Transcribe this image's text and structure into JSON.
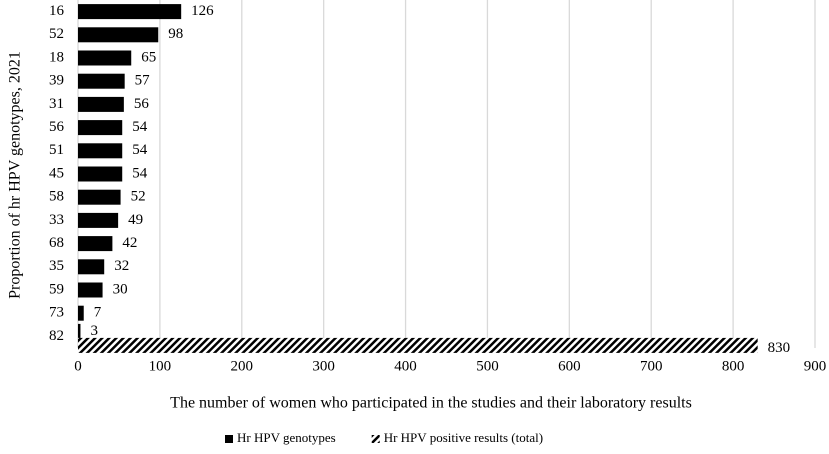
{
  "chart_data": {
    "type": "hbar",
    "y_axis_label": "Proportion of hr HPV genotypes, 2021",
    "x_axis_label": "The number of women who participated in the studies and their laboratory results",
    "categories": [
      "16",
      "52",
      "18",
      "39",
      "31",
      "56",
      "51",
      "45",
      "58",
      "33",
      "68",
      "35",
      "59",
      "73",
      "82"
    ],
    "series": [
      {
        "name": "Hr HPV genotypes",
        "color": "#000000",
        "hatch": false,
        "values": [
          126,
          98,
          65,
          57,
          56,
          54,
          54,
          54,
          52,
          49,
          42,
          32,
          30,
          7,
          3
        ]
      },
      {
        "name": "Hr HPV positive results (total)",
        "color": "#000000",
        "hatch": true,
        "values": [
          null,
          null,
          null,
          null,
          null,
          null,
          null,
          null,
          null,
          null,
          null,
          null,
          null,
          null,
          830
        ]
      }
    ],
    "xlim": [
      0,
      900
    ],
    "xticks": [
      0,
      100,
      200,
      300,
      400,
      500,
      600,
      700,
      800,
      900
    ],
    "grid": true,
    "legend": "bottom"
  }
}
